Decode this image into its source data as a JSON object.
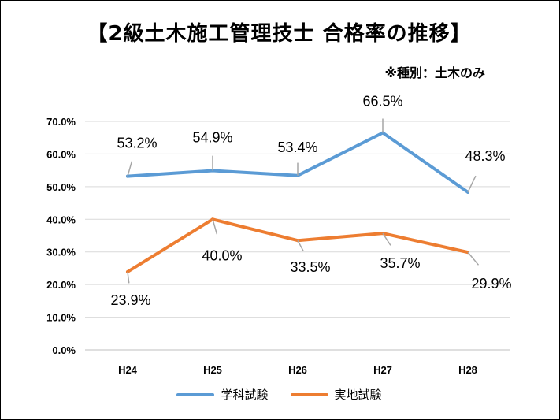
{
  "chart_data": {
    "type": "line",
    "title": "【2級土木施工管理技士 合格率の推移】",
    "subtitle": "※種別：土木のみ",
    "categories": [
      "H24",
      "H25",
      "H26",
      "H27",
      "H28"
    ],
    "ylim": [
      0,
      70
    ],
    "yticks": [
      "0.0%",
      "10.0%",
      "20.0%",
      "30.0%",
      "40.0%",
      "50.0%",
      "60.0%",
      "70.0%"
    ],
    "grid": true,
    "legend_position": "bottom",
    "series": [
      {
        "name": "学科試験",
        "color": "#5b9bd5",
        "values": [
          53.2,
          54.9,
          53.4,
          66.5,
          48.3
        ],
        "labels": [
          "53.2%",
          "54.9%",
          "53.4%",
          "66.5%",
          "48.3%"
        ]
      },
      {
        "name": "実地試験",
        "color": "#ed7d31",
        "values": [
          23.9,
          40.0,
          33.5,
          35.7,
          29.9
        ],
        "labels": [
          "23.9%",
          "40.0%",
          "33.5%",
          "35.7%",
          "29.9%"
        ]
      }
    ]
  }
}
